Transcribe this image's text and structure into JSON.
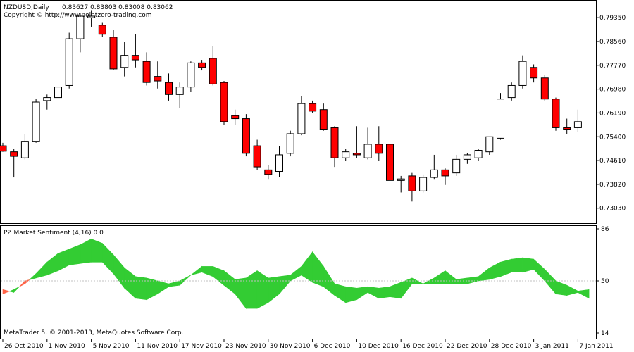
{
  "header": {
    "symbol": "NZDUSD,Daily",
    "ohlc": "0.83627 0.83803 0.83008 0.83062",
    "copyright": "Copyright © http://www.pointzero-trading.com"
  },
  "indicator": {
    "title": "PZ Market Sentiment (4,16) 0 0",
    "footer": "MetaTrader 5, © 2001-2013, MetaQuotes Software Corp.",
    "axis_labels": [
      "86",
      "50",
      "14"
    ]
  },
  "colors": {
    "bull_fill": "#ffffff",
    "bear_fill": "#ff0000",
    "bullish_area": "#33cc33",
    "bearish_area": "#ff6347",
    "grid": "#c0c0c0"
  },
  "chart_data": [
    {
      "type": "candlestick",
      "ylim": [
        0.7265,
        0.7975
      ],
      "yticks": [
        0.7935,
        0.7856,
        0.7777,
        0.7698,
        0.7619,
        0.754,
        0.7461,
        0.7382,
        0.7303
      ],
      "ytick_labels": [
        "0.79350",
        "0.78560",
        "0.77770",
        "0.76980",
        "0.76190",
        "0.75400",
        "0.74610",
        "0.73820",
        "0.73030"
      ],
      "x_labels": [
        "26 Oct 2010",
        "1 Nov 2010",
        "5 Nov 2010",
        "11 Nov 2010",
        "17 Nov 2010",
        "23 Nov 2010",
        "30 Nov 2010",
        "6 Dec 2010",
        "10 Dec 2010",
        "16 Dec 2010",
        "22 Dec 2010",
        "28 Dec 2010",
        "3 Jan 2011",
        "7 Jan 2011"
      ],
      "x_label_bars": [
        0,
        4,
        8,
        12,
        16,
        20,
        24,
        28,
        32,
        36,
        40,
        44,
        48,
        52
      ],
      "candles": [
        {
          "o": 0.751,
          "h": 0.752,
          "l": 0.749,
          "c": 0.7492
        },
        {
          "o": 0.749,
          "h": 0.75,
          "l": 0.7405,
          "c": 0.7475
        },
        {
          "o": 0.747,
          "h": 0.755,
          "l": 0.7465,
          "c": 0.7525
        },
        {
          "o": 0.7525,
          "h": 0.7665,
          "l": 0.752,
          "c": 0.7655
        },
        {
          "o": 0.766,
          "h": 0.768,
          "l": 0.763,
          "c": 0.767
        },
        {
          "o": 0.767,
          "h": 0.78,
          "l": 0.763,
          "c": 0.7705
        },
        {
          "o": 0.771,
          "h": 0.7885,
          "l": 0.77,
          "c": 0.7865
        },
        {
          "o": 0.7865,
          "h": 0.795,
          "l": 0.782,
          "c": 0.794
        },
        {
          "o": 0.7935,
          "h": 0.796,
          "l": 0.7905,
          "c": 0.794
        },
        {
          "o": 0.791,
          "h": 0.792,
          "l": 0.787,
          "c": 0.788
        },
        {
          "o": 0.787,
          "h": 0.7895,
          "l": 0.776,
          "c": 0.7765
        },
        {
          "o": 0.777,
          "h": 0.7855,
          "l": 0.774,
          "c": 0.781
        },
        {
          "o": 0.781,
          "h": 0.788,
          "l": 0.777,
          "c": 0.7795
        },
        {
          "o": 0.779,
          "h": 0.782,
          "l": 0.771,
          "c": 0.772
        },
        {
          "o": 0.774,
          "h": 0.779,
          "l": 0.77,
          "c": 0.7725
        },
        {
          "o": 0.772,
          "h": 0.775,
          "l": 0.766,
          "c": 0.768
        },
        {
          "o": 0.768,
          "h": 0.772,
          "l": 0.7635,
          "c": 0.7705
        },
        {
          "o": 0.7705,
          "h": 0.779,
          "l": 0.769,
          "c": 0.7785
        },
        {
          "o": 0.7785,
          "h": 0.7795,
          "l": 0.776,
          "c": 0.777
        },
        {
          "o": 0.78,
          "h": 0.784,
          "l": 0.771,
          "c": 0.7715
        },
        {
          "o": 0.772,
          "h": 0.7725,
          "l": 0.758,
          "c": 0.759
        },
        {
          "o": 0.761,
          "h": 0.763,
          "l": 0.758,
          "c": 0.76
        },
        {
          "o": 0.76,
          "h": 0.7615,
          "l": 0.7475,
          "c": 0.7485
        },
        {
          "o": 0.751,
          "h": 0.753,
          "l": 0.743,
          "c": 0.744
        },
        {
          "o": 0.743,
          "h": 0.7445,
          "l": 0.74,
          "c": 0.7415
        },
        {
          "o": 0.7425,
          "h": 0.751,
          "l": 0.7405,
          "c": 0.748
        },
        {
          "o": 0.7485,
          "h": 0.756,
          "l": 0.7475,
          "c": 0.755
        },
        {
          "o": 0.755,
          "h": 0.7675,
          "l": 0.7545,
          "c": 0.765
        },
        {
          "o": 0.765,
          "h": 0.766,
          "l": 0.762,
          "c": 0.7625
        },
        {
          "o": 0.763,
          "h": 0.765,
          "l": 0.756,
          "c": 0.7565
        },
        {
          "o": 0.757,
          "h": 0.7575,
          "l": 0.744,
          "c": 0.747
        },
        {
          "o": 0.747,
          "h": 0.75,
          "l": 0.746,
          "c": 0.749
        },
        {
          "o": 0.7485,
          "h": 0.7575,
          "l": 0.747,
          "c": 0.748
        },
        {
          "o": 0.747,
          "h": 0.757,
          "l": 0.7465,
          "c": 0.7515
        },
        {
          "o": 0.7515,
          "h": 0.7575,
          "l": 0.746,
          "c": 0.7485
        },
        {
          "o": 0.7515,
          "h": 0.752,
          "l": 0.7385,
          "c": 0.7395
        },
        {
          "o": 0.7395,
          "h": 0.741,
          "l": 0.7355,
          "c": 0.74
        },
        {
          "o": 0.741,
          "h": 0.742,
          "l": 0.7325,
          "c": 0.736
        },
        {
          "o": 0.736,
          "h": 0.7415,
          "l": 0.7355,
          "c": 0.7405
        },
        {
          "o": 0.7405,
          "h": 0.748,
          "l": 0.74,
          "c": 0.743
        },
        {
          "o": 0.743,
          "h": 0.7435,
          "l": 0.738,
          "c": 0.741
        },
        {
          "o": 0.742,
          "h": 0.748,
          "l": 0.741,
          "c": 0.7465
        },
        {
          "o": 0.7465,
          "h": 0.7485,
          "l": 0.745,
          "c": 0.748
        },
        {
          "o": 0.747,
          "h": 0.75,
          "l": 0.746,
          "c": 0.7495
        },
        {
          "o": 0.749,
          "h": 0.754,
          "l": 0.748,
          "c": 0.754
        },
        {
          "o": 0.7535,
          "h": 0.7685,
          "l": 0.753,
          "c": 0.7665
        },
        {
          "o": 0.767,
          "h": 0.772,
          "l": 0.766,
          "c": 0.771
        },
        {
          "o": 0.771,
          "h": 0.781,
          "l": 0.77,
          "c": 0.779
        },
        {
          "o": 0.777,
          "h": 0.778,
          "l": 0.772,
          "c": 0.7735
        },
        {
          "o": 0.7735,
          "h": 0.7745,
          "l": 0.766,
          "c": 0.7665
        },
        {
          "o": 0.7665,
          "h": 0.767,
          "l": 0.756,
          "c": 0.757
        },
        {
          "o": 0.757,
          "h": 0.76,
          "l": 0.755,
          "c": 0.7565
        },
        {
          "o": 0.757,
          "h": 0.763,
          "l": 0.7555,
          "c": 0.759
        }
      ]
    },
    {
      "type": "area",
      "title": "PZ Market Sentiment (4,16) 0 0",
      "ylim": [
        14,
        86
      ],
      "reference_level": 50,
      "series": [
        {
          "values": [
            41,
            44,
            48,
            55,
            63,
            69,
            72,
            75,
            79,
            76,
            68,
            59,
            53,
            52,
            50,
            48,
            50,
            54,
            60,
            60,
            57,
            51,
            52,
            57,
            52,
            53,
            54,
            60,
            70,
            60,
            48,
            46,
            45,
            46,
            45,
            46,
            49,
            52,
            48,
            52,
            57,
            51,
            52,
            53,
            59,
            63,
            65,
            66,
            65,
            58,
            50,
            47,
            43,
            44
          ]
        },
        {
          "values": [
            44,
            42,
            50,
            52,
            54,
            57,
            61,
            62,
            63,
            63,
            55,
            45,
            38,
            37,
            41,
            46,
            47,
            54,
            56,
            53,
            47,
            41,
            31,
            31,
            35,
            41,
            50,
            54,
            49,
            46,
            40,
            35,
            37,
            42,
            38,
            39,
            38,
            48,
            48,
            48,
            48,
            48,
            48,
            50,
            51,
            53,
            56,
            56,
            58,
            50,
            41,
            40,
            42,
            38
          ]
        }
      ]
    }
  ]
}
